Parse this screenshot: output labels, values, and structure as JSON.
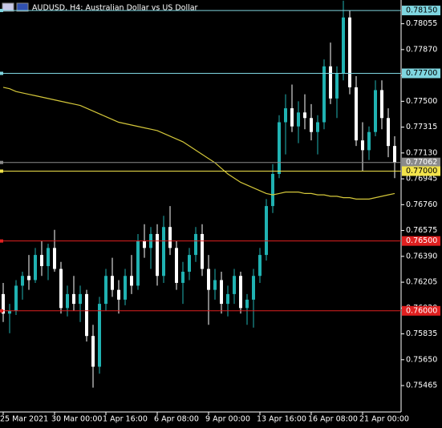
{
  "chart_data": {
    "type": "candlestick",
    "title": "AUDUSD, H4:  Australian Dollar vs US Dollar",
    "up_color": "#20b2b2",
    "down_color": "#ffffff",
    "ylim": [
      0.75276,
      0.78225
    ],
    "yticks": [
      {
        "value": 0.78055,
        "label": "0.78055"
      },
      {
        "value": 0.7787,
        "label": "0.77870"
      },
      {
        "value": 0.77685,
        "label": "0.77685"
      },
      {
        "value": 0.775,
        "label": "0.77500"
      },
      {
        "value": 0.77315,
        "label": "0.77315"
      },
      {
        "value": 0.7713,
        "label": "0.77130"
      },
      {
        "value": 0.76945,
        "label": "0.76945"
      },
      {
        "value": 0.7676,
        "label": "0.76760"
      },
      {
        "value": 0.76575,
        "label": "0.76575"
      },
      {
        "value": 0.7639,
        "label": "0.76390"
      },
      {
        "value": 0.76205,
        "label": "0.76205"
      },
      {
        "value": 0.7602,
        "label": "0.76020"
      },
      {
        "value": 0.75835,
        "label": "0.75835"
      },
      {
        "value": 0.7565,
        "label": "0.75650"
      },
      {
        "value": 0.75465,
        "label": "0.75465"
      }
    ],
    "categories": [
      "25 Mar 2021",
      null,
      null,
      null,
      null,
      null,
      null,
      null,
      "30 Mar 00:00",
      null,
      null,
      null,
      null,
      null,
      null,
      null,
      "1 Apr 16:00",
      null,
      null,
      null,
      null,
      null,
      null,
      null,
      "6 Apr 08:00",
      null,
      null,
      null,
      null,
      null,
      null,
      null,
      "9 Apr 00:00",
      null,
      null,
      null,
      null,
      null,
      null,
      null,
      "13 Apr 16:00",
      null,
      null,
      null,
      null,
      null,
      null,
      null,
      "16 Apr 08:00",
      null,
      null,
      null,
      null,
      null,
      null,
      null,
      "21 Apr 00:00",
      null,
      null,
      null,
      null,
      null
    ],
    "open": [
      0.7612,
      0.7598,
      0.76,
      0.7618,
      0.7625,
      0.7622,
      0.764,
      0.7632,
      0.7645,
      0.763,
      0.7602,
      0.7612,
      0.7605,
      0.7612,
      0.7582,
      0.756,
      0.7605,
      0.7625,
      0.7615,
      0.7608,
      0.7625,
      0.7618,
      0.765,
      0.7645,
      0.7655,
      0.7625,
      0.766,
      0.7645,
      0.762,
      0.7628,
      0.764,
      0.7655,
      0.763,
      0.7615,
      0.7622,
      0.7605,
      0.7612,
      0.7625,
      0.7602,
      0.7608,
      0.7625,
      0.764,
      0.7675,
      0.7698,
      0.7735,
      0.7745,
      0.7732,
      0.7742,
      0.7738,
      0.7728,
      0.7735,
      0.7775,
      0.7752,
      0.777,
      0.781,
      0.776,
      0.7722,
      0.7715,
      0.7728,
      0.7758,
      0.7738,
      0.7718
    ],
    "high": [
      0.762,
      0.7605,
      0.7622,
      0.7628,
      0.764,
      0.7645,
      0.765,
      0.7648,
      0.7658,
      0.7635,
      0.7618,
      0.7625,
      0.7618,
      0.7615,
      0.759,
      0.761,
      0.763,
      0.7638,
      0.7622,
      0.763,
      0.764,
      0.7655,
      0.7662,
      0.766,
      0.7662,
      0.7668,
      0.7675,
      0.765,
      0.7635,
      0.7645,
      0.766,
      0.7662,
      0.764,
      0.763,
      0.7628,
      0.7618,
      0.763,
      0.7628,
      0.7612,
      0.763,
      0.7645,
      0.768,
      0.7705,
      0.774,
      0.7755,
      0.7762,
      0.775,
      0.7755,
      0.7748,
      0.774,
      0.778,
      0.7792,
      0.7775,
      0.7822,
      0.7815,
      0.7768,
      0.7735,
      0.7732,
      0.7765,
      0.7765,
      0.7745,
      0.7725
    ],
    "low": [
      0.7592,
      0.7584,
      0.7597,
      0.7608,
      0.7615,
      0.762,
      0.7625,
      0.7622,
      0.7628,
      0.7598,
      0.7596,
      0.76,
      0.7592,
      0.7578,
      0.7545,
      0.7555,
      0.76,
      0.761,
      0.7598,
      0.7604,
      0.7612,
      0.7615,
      0.7638,
      0.763,
      0.7618,
      0.762,
      0.764,
      0.7615,
      0.7605,
      0.7622,
      0.7635,
      0.7625,
      0.759,
      0.7608,
      0.7598,
      0.7596,
      0.7605,
      0.7598,
      0.759,
      0.7588,
      0.762,
      0.7636,
      0.767,
      0.7695,
      0.7712,
      0.7728,
      0.772,
      0.773,
      0.7722,
      0.7712,
      0.773,
      0.7748,
      0.7738,
      0.7765,
      0.7755,
      0.7718,
      0.77,
      0.7708,
      0.7725,
      0.773,
      0.771,
      0.7695
    ],
    "close": [
      0.7598,
      0.76,
      0.7618,
      0.7625,
      0.7622,
      0.764,
      0.7632,
      0.7645,
      0.763,
      0.7602,
      0.7612,
      0.7605,
      0.7612,
      0.7582,
      0.756,
      0.7605,
      0.7625,
      0.7615,
      0.7608,
      0.7625,
      0.7618,
      0.765,
      0.7645,
      0.7655,
      0.7625,
      0.766,
      0.7645,
      0.762,
      0.7628,
      0.764,
      0.7655,
      0.763,
      0.7615,
      0.7622,
      0.7605,
      0.7612,
      0.7625,
      0.7602,
      0.7608,
      0.7625,
      0.764,
      0.7675,
      0.7698,
      0.7735,
      0.7745,
      0.7732,
      0.7742,
      0.7738,
      0.7728,
      0.7735,
      0.7775,
      0.7752,
      0.777,
      0.781,
      0.776,
      0.7722,
      0.7715,
      0.7728,
      0.7758,
      0.7738,
      0.7718,
      0.77062
    ],
    "moving_average": {
      "color": "#d4c73a",
      "values": [
        0.776,
        0.7759,
        0.7757,
        0.7756,
        0.7755,
        0.7754,
        0.7753,
        0.7752,
        0.7751,
        0.775,
        0.7749,
        0.7748,
        0.7747,
        0.7745,
        0.7743,
        0.7741,
        0.7739,
        0.7737,
        0.7735,
        0.7734,
        0.7733,
        0.7732,
        0.7731,
        0.773,
        0.7729,
        0.7727,
        0.7725,
        0.7723,
        0.7721,
        0.7718,
        0.7715,
        0.7712,
        0.7709,
        0.7706,
        0.7702,
        0.7698,
        0.7695,
        0.7692,
        0.769,
        0.7688,
        0.7686,
        0.7684,
        0.7683,
        0.7684,
        0.7685,
        0.7685,
        0.7685,
        0.7684,
        0.7684,
        0.7683,
        0.7683,
        0.7682,
        0.7682,
        0.7681,
        0.7681,
        0.768,
        0.768,
        0.768,
        0.7681,
        0.7682,
        0.7683,
        0.7684
      ]
    },
    "levels": [
      {
        "value": 0.7815,
        "label": "0.78150",
        "color": "#7fd6e0"
      },
      {
        "value": 0.777,
        "label": "0.77700",
        "color": "#7fd6e0"
      },
      {
        "value": 0.77062,
        "label": "0.77062",
        "color": "#8a8a8a"
      },
      {
        "value": 0.77,
        "label": "0.77000",
        "color": "#f2e34b"
      },
      {
        "value": 0.765,
        "label": "0.76500",
        "color": "#e02020"
      },
      {
        "value": 0.76,
        "label": "0.76000",
        "color": "#e02020"
      }
    ]
  }
}
